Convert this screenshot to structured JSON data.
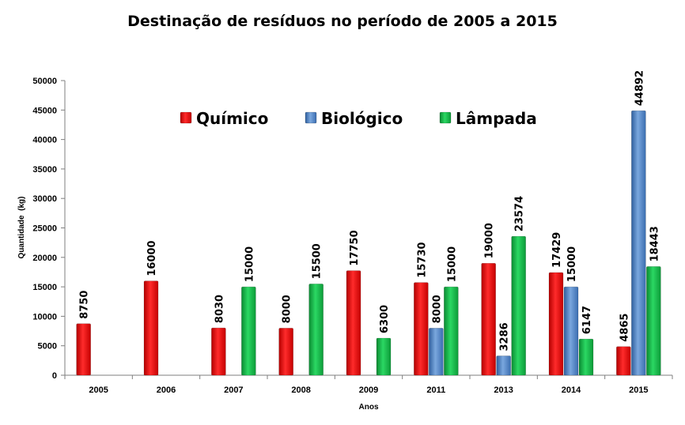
{
  "chart_data": {
    "type": "bar",
    "title": "Destinação de resíduos no período de 2005 a 2015",
    "xlabel": "Anos",
    "ylabel": "Quantidade  (kg)",
    "ylim": [
      0,
      50000
    ],
    "yticks": [
      0,
      5000,
      10000,
      15000,
      20000,
      25000,
      30000,
      35000,
      40000,
      45000,
      50000
    ],
    "categories": [
      "2005",
      "2006",
      "2007",
      "2008",
      "2009",
      "2011",
      "2013",
      "2014",
      "2015"
    ],
    "series": [
      {
        "name": "Químico",
        "color": "#ee1111",
        "values": [
          8750,
          16000,
          8030,
          8000,
          17750,
          15730,
          19000,
          17429,
          4865
        ]
      },
      {
        "name": "Biológico",
        "color": "#4f81bd",
        "values": [
          null,
          null,
          null,
          null,
          null,
          8000,
          3286,
          15000,
          44892
        ]
      },
      {
        "name": "Lâmpada",
        "color": "#11b847",
        "values": [
          null,
          null,
          15000,
          15500,
          6300,
          15000,
          23574,
          6147,
          18443
        ]
      }
    ],
    "legend_position": "top-center",
    "grid": false
  }
}
